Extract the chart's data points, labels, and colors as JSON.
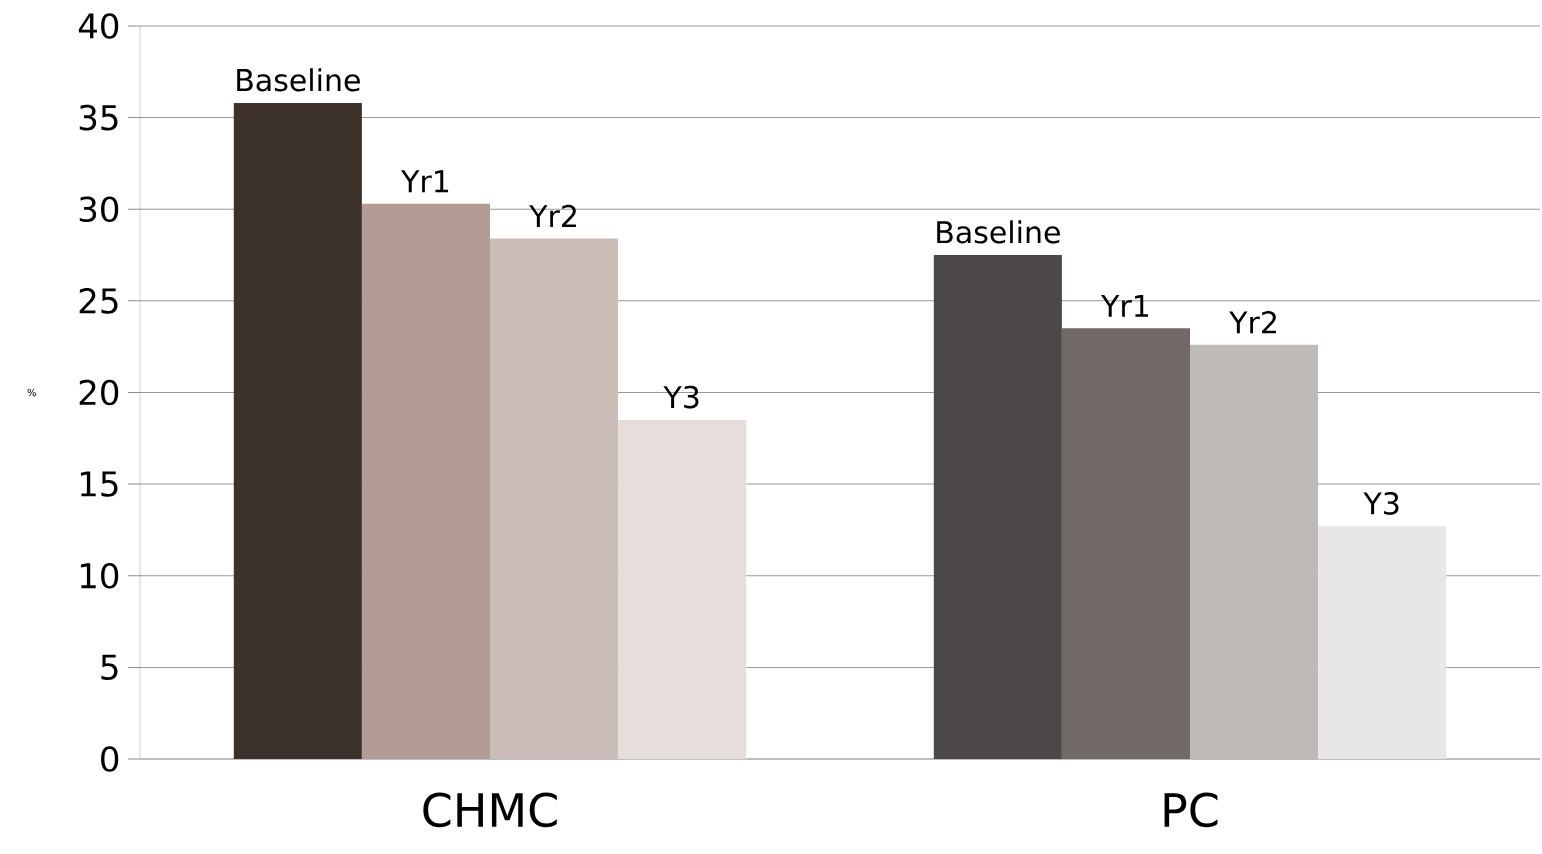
{
  "chart_data": {
    "type": "bar",
    "categories": [
      "CHMC",
      "PC"
    ],
    "ylabel": "%",
    "ylim": [
      0,
      40
    ],
    "yticks": [
      0,
      5,
      10,
      15,
      20,
      25,
      30,
      35,
      40
    ],
    "grid": "y",
    "series": [
      {
        "name": "Baseline",
        "colors": [
          "#3d312b",
          "#4d4848"
        ],
        "values": [
          35.8,
          27.5
        ]
      },
      {
        "name": "Yr1",
        "colors": [
          "#b39c93",
          "#726866"
        ],
        "values": [
          30.3,
          23.5
        ]
      },
      {
        "name": "Yr2",
        "colors": [
          "#cbbdb8",
          "#bfb9b8"
        ],
        "values": [
          28.4,
          22.6
        ]
      },
      {
        "name": "Y3",
        "colors": [
          "#e6dedb",
          "#e8e6e7"
        ],
        "values": [
          18.5,
          12.7
        ]
      }
    ]
  }
}
